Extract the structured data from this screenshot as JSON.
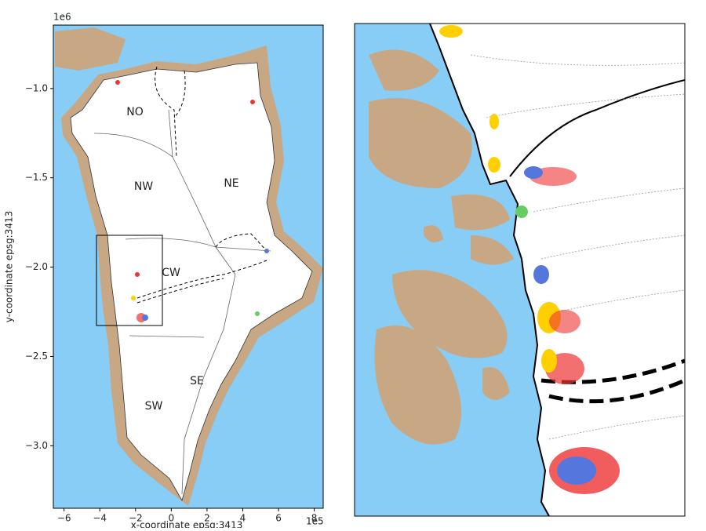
{
  "map": {
    "y_offset": "1e6",
    "x_offset": "1e5",
    "y_label": "y-coordinate epsg:3413",
    "x_label": "x-coordinate epsg:3413",
    "xlim": [
      -6.6,
      8.5
    ],
    "ylim": [
      -3.35,
      -0.645
    ],
    "xticks": [
      {
        "value": -6,
        "label": "−6"
      },
      {
        "value": -4,
        "label": "−4"
      },
      {
        "value": -2,
        "label": "−2"
      },
      0,
      2,
      4,
      6,
      8
    ],
    "yticks": [
      {
        "value": -1.0,
        "label": "−1.0"
      },
      {
        "value": -1.5,
        "label": "−1.5"
      },
      {
        "value": -2.0,
        "label": "−2.0"
      },
      {
        "value": -2.5,
        "label": "−2.5"
      },
      {
        "value": -3.0,
        "label": "−3.0"
      }
    ],
    "regions": [
      "NO",
      "NW",
      "NE",
      "CW",
      "SW",
      "SE"
    ]
  }
}
